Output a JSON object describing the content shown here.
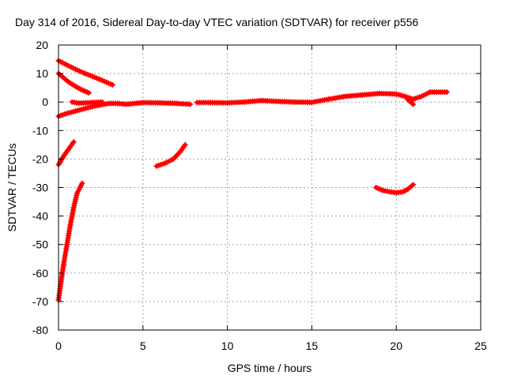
{
  "chart_data": {
    "type": "scatter",
    "title": "Day 314 of 2016, Sidereal Day-to-day VTEC variation (SDTVAR) for receiver p556",
    "xlabel": "GPS time / hours",
    "ylabel": "SDTVAR / TECUs",
    "xlim": [
      0,
      25
    ],
    "ylim": [
      -80,
      20
    ],
    "xticks": [
      0,
      5,
      10,
      15,
      20,
      25
    ],
    "yticks": [
      20,
      10,
      0,
      -10,
      -20,
      -30,
      -40,
      -50,
      -60,
      -70,
      -80
    ],
    "grid": true,
    "legend": "none",
    "marker": "plus",
    "color": "#ff0000",
    "series": [
      {
        "points": [
          [
            0.0,
            14.5
          ],
          [
            0.5,
            13.0
          ],
          [
            1.0,
            11.5
          ],
          [
            1.5,
            10.2
          ],
          [
            2.0,
            9.0
          ],
          [
            2.5,
            7.8
          ],
          [
            3.2,
            6.0
          ]
        ]
      },
      {
        "points": [
          [
            0.0,
            10.0
          ],
          [
            0.3,
            8.5
          ],
          [
            0.6,
            7.0
          ],
          [
            1.0,
            5.5
          ],
          [
            1.4,
            4.2
          ],
          [
            1.8,
            3.2
          ]
        ]
      },
      {
        "points": [
          [
            0.0,
            -5.0
          ],
          [
            0.5,
            -4.0
          ],
          [
            1.0,
            -3.2
          ],
          [
            1.5,
            -2.4
          ],
          [
            2.0,
            -1.6
          ],
          [
            2.5,
            -1.0
          ],
          [
            3.0,
            -0.5
          ],
          [
            3.5,
            -0.5
          ],
          [
            4.0,
            -0.8
          ],
          [
            4.5,
            -0.5
          ],
          [
            5.0,
            -0.2
          ],
          [
            6.0,
            -0.3
          ],
          [
            7.0,
            -0.5
          ],
          [
            7.8,
            -0.8
          ]
        ]
      },
      {
        "points": [
          [
            0.8,
            0.0
          ],
          [
            1.2,
            -0.4
          ],
          [
            1.6,
            -0.3
          ],
          [
            2.0,
            -0.2
          ],
          [
            2.6,
            0.0
          ]
        ]
      },
      {
        "points": [
          [
            8.2,
            -0.2
          ],
          [
            9.0,
            -0.2
          ],
          [
            10.0,
            -0.3
          ],
          [
            11.0,
            0.0
          ],
          [
            12.0,
            0.5
          ],
          [
            13.0,
            0.2
          ],
          [
            14.0,
            0.0
          ],
          [
            15.0,
            -0.1
          ],
          [
            16.0,
            1.0
          ],
          [
            17.0,
            2.0
          ],
          [
            18.0,
            2.5
          ],
          [
            19.0,
            3.0
          ],
          [
            20.0,
            2.8
          ],
          [
            20.5,
            2.0
          ],
          [
            21.0,
            1.0
          ],
          [
            21.5,
            2.0
          ],
          [
            22.0,
            3.5
          ],
          [
            23.0,
            3.5
          ]
        ]
      },
      {
        "points": [
          [
            20.6,
            1.5
          ],
          [
            20.8,
            0.2
          ],
          [
            21.0,
            -0.8
          ]
        ]
      },
      {
        "points": [
          [
            0.0,
            -22.0
          ],
          [
            0.3,
            -19.0
          ],
          [
            0.6,
            -16.5
          ],
          [
            0.9,
            -14.0
          ]
        ]
      },
      {
        "points": [
          [
            5.8,
            -22.5
          ],
          [
            6.3,
            -21.5
          ],
          [
            6.8,
            -20.0
          ],
          [
            7.2,
            -17.5
          ],
          [
            7.5,
            -15.0
          ]
        ]
      },
      {
        "points": [
          [
            0.0,
            -69.5
          ],
          [
            0.15,
            -63.0
          ],
          [
            0.3,
            -57.0
          ],
          [
            0.5,
            -50.0
          ],
          [
            0.7,
            -43.0
          ],
          [
            0.9,
            -37.0
          ],
          [
            1.1,
            -32.0
          ],
          [
            1.4,
            -28.5
          ]
        ]
      },
      {
        "points": [
          [
            18.8,
            -30.0
          ],
          [
            19.2,
            -31.0
          ],
          [
            19.6,
            -31.5
          ],
          [
            20.0,
            -31.8
          ],
          [
            20.4,
            -31.5
          ],
          [
            20.7,
            -30.5
          ],
          [
            21.0,
            -29.0
          ]
        ]
      }
    ]
  }
}
